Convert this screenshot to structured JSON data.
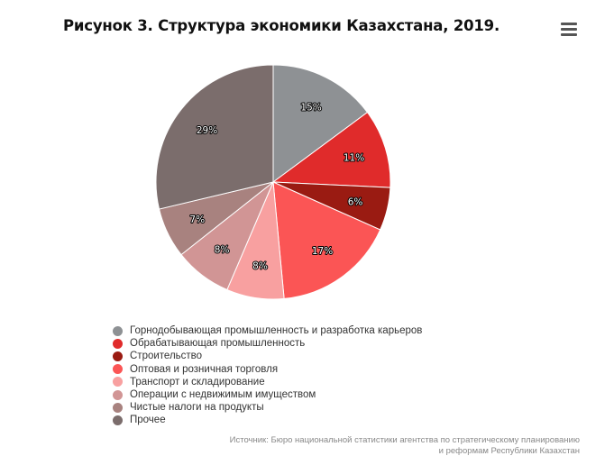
{
  "title": "Рисунок 3. Структура экономики Казахстана, 2019.",
  "menu_icon": "hamburger-menu-icon",
  "source": {
    "line1": "Источник: Бюро национальной статистики агентства по стратегическому планированию",
    "line2": "и реформам Республики Казахстан"
  },
  "chart_data": {
    "type": "pie",
    "title": "Рисунок 3. Структура экономики Казахстана, 2019.",
    "legend_position": "bottom-left",
    "slices": [
      {
        "name": "Горнодобывающая промышленность и разработка карьеров",
        "value": 15,
        "label": "15%",
        "color": "#8e9194"
      },
      {
        "name": "Обрабатывающая промышленность",
        "value": 11,
        "label": "11%",
        "color": "#e02b2b"
      },
      {
        "name": "Строительство",
        "value": 6,
        "label": "6%",
        "color": "#9a1b12"
      },
      {
        "name": "Оптовая и розничная торговля",
        "value": 17,
        "label": "17%",
        "color": "#fb5555"
      },
      {
        "name": "Транспорт и складирование",
        "value": 8,
        "label": "8%",
        "color": "#f8a0a0"
      },
      {
        "name": "Операции с недвижимым имуществом",
        "value": 8,
        "label": "8%",
        "color": "#d19595"
      },
      {
        "name": "Чистые налоги на продукты",
        "value": 7,
        "label": "7%",
        "color": "#a8827f"
      },
      {
        "name": "Прочее",
        "value": 29,
        "label": "29%",
        "color": "#7b6d6c"
      }
    ]
  }
}
